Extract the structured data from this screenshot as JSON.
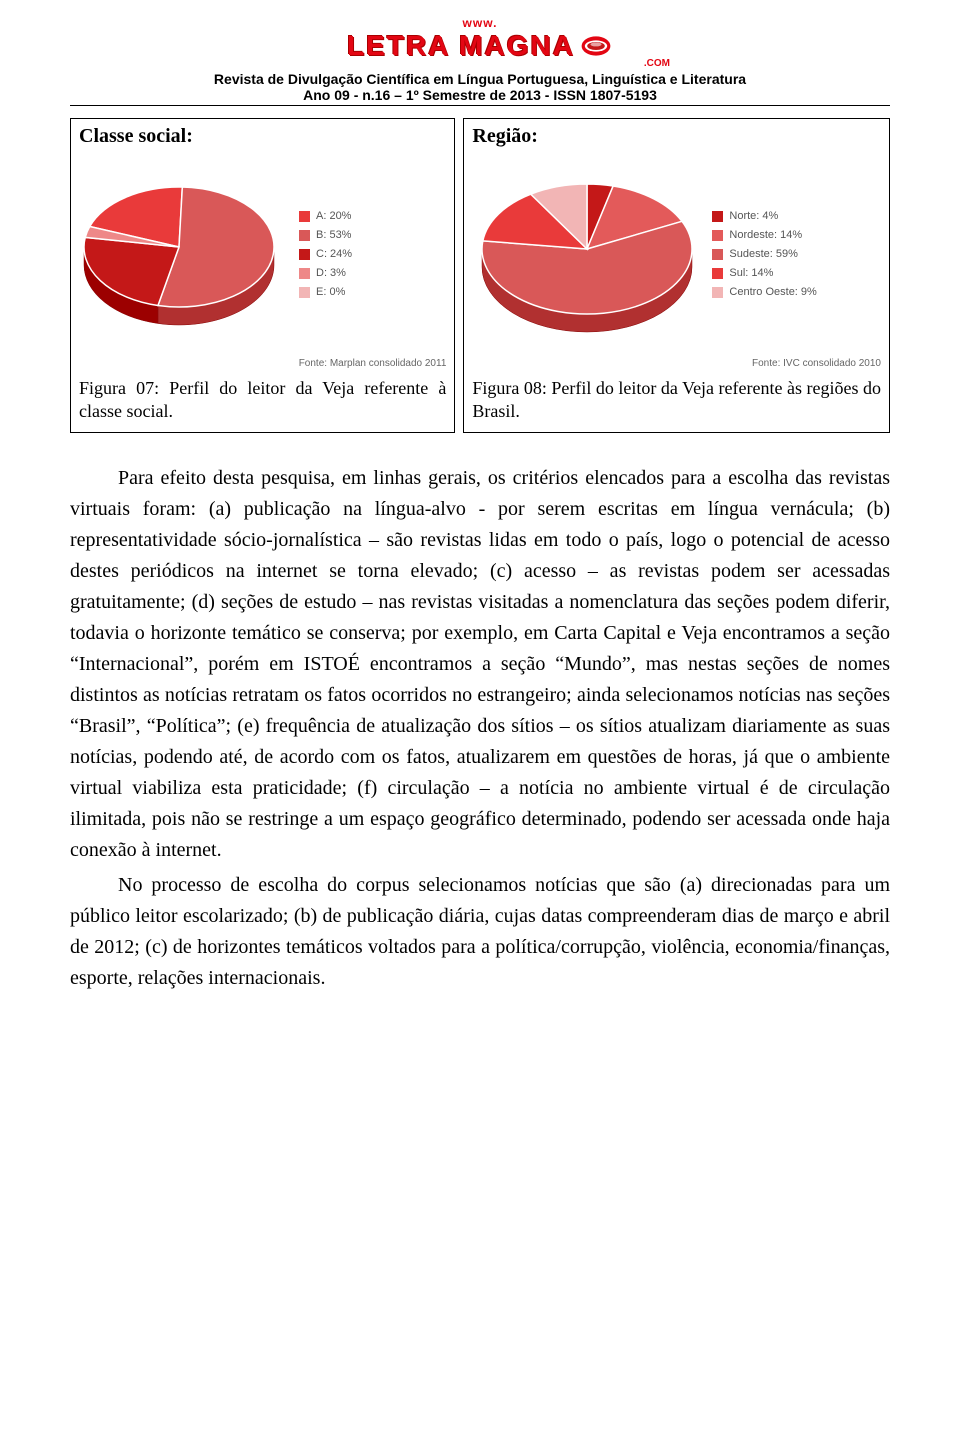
{
  "header": {
    "www": "www.",
    "logo_text": "LETRA MAGNA",
    "com": ".COM",
    "line1": "Revista de Divulgação Científica em Língua Portuguesa, Linguística e Literatura",
    "line2": "Ano 09 - n.16 – 1º Semestre de  2013 - ISSN 1807-5193"
  },
  "figure07": {
    "title": "Classe social:",
    "chart": {
      "type": "pie_3d",
      "background_color": "#ffffff",
      "label_font_family": "Arial",
      "label_font_size_pt": 9,
      "label_color": "#555555",
      "slices": [
        {
          "label": "A: 20%",
          "value": 20,
          "color": "#e93a3a"
        },
        {
          "label": "B: 53%",
          "value": 53,
          "color": "#d95858"
        },
        {
          "label": "C: 24%",
          "value": 24,
          "color": "#c41818"
        },
        {
          "label": "D: 3%",
          "value": 3,
          "color": "#e88"
        },
        {
          "label": "E: 0%",
          "value": 0,
          "color": "#f2b5b5"
        }
      ],
      "side_color": "#8a0a0a",
      "stroke_color": "#ffffff",
      "stroke_width": 1.5
    },
    "source": "Fonte: Marplan consolidado 2011",
    "caption": "Figura 07: Perfil do leitor da Veja referente à classe social."
  },
  "figure08": {
    "title": "Região:",
    "chart": {
      "type": "pie_3d",
      "background_color": "#ffffff",
      "label_font_family": "Arial",
      "label_font_size_pt": 9,
      "label_color": "#555555",
      "slices": [
        {
          "label": "Norte: 4%",
          "value": 4,
          "color": "#c41818"
        },
        {
          "label": "Nordeste: 14%",
          "value": 14,
          "color": "#e35a5a"
        },
        {
          "label": "Sudeste: 59%",
          "value": 59,
          "color": "#d95858"
        },
        {
          "label": "Sul: 14%",
          "value": 14,
          "color": "#e93a3a"
        },
        {
          "label": "Centro Oeste: 9%",
          "value": 9,
          "color": "#f2b5b5"
        }
      ],
      "side_color": "#8a0a0a",
      "stroke_color": "#ffffff",
      "stroke_width": 1.5
    },
    "source": "Fonte: IVC consolidado 2010",
    "caption": "Figura 08: Perfil do leitor da Veja referente às regiões do Brasil."
  },
  "body": {
    "para1": "Para efeito desta pesquisa, em linhas gerais, os critérios elencados para a escolha das revistas virtuais foram: (a) publicação na língua-alvo - por serem escritas em língua vernácula; (b) representatividade sócio-jornalística – são revistas lidas em todo o país, logo o potencial de acesso destes periódicos na internet se torna elevado; (c) acesso – as revistas podem ser acessadas gratuitamente; (d) seções de estudo – nas revistas visitadas a nomenclatura das seções podem diferir, todavia o horizonte temático se conserva; por exemplo, em Carta Capital e Veja encontramos a seção “Internacional”, porém em ISTOÉ encontramos a seção “Mundo”, mas nestas seções de nomes distintos as notícias retratam os fatos ocorridos no estrangeiro; ainda selecionamos notícias nas seções “Brasil”, “Política”; (e) frequência de atualização dos sítios – os sítios atualizam diariamente as suas notícias, podendo até, de acordo com os fatos, atualizarem em questões de horas, já que o ambiente virtual viabiliza esta praticidade; (f) circulação – a notícia no ambiente virtual é de circulação ilimitada, pois não se restringe a um espaço geográfico determinado, podendo ser acessada onde haja conexão à internet.",
    "para2": "No processo de escolha do corpus selecionamos notícias que são (a) direcionadas para um público leitor escolarizado; (b) de publicação diária, cujas datas compreenderam dias de março e abril de 2012; (c) de horizontes temáticos voltados para a política/corrupção, violência, economia/finanças, esporte, relações internacionais."
  }
}
